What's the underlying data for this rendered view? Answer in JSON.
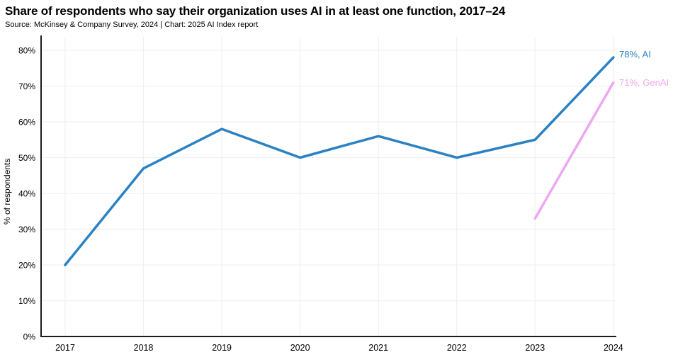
{
  "header": {
    "title": "Share of respondents who say their organization uses AI in at least one function, 2017–24",
    "source": "Source: McKinsey & Company Survey, 2024 | Chart: 2025 AI Index report"
  },
  "colors": {
    "ai_line": "#2B82C3",
    "genai_line": "#EDA8F2",
    "grid": "#F0F0F0",
    "axis": "#1C1C1C",
    "tick_text": "#000000"
  },
  "chart_data": {
    "type": "line",
    "title": "Share of respondents who say their organization uses AI in at least one function, 2017–24",
    "subtitle": "Source: McKinsey & Company Survey, 2024 | Chart: 2025 AI Index report",
    "xlabel": "",
    "ylabel": "% of respondents",
    "x": [
      2017,
      2018,
      2019,
      2020,
      2021,
      2022,
      2023,
      2024
    ],
    "xtick_labels": [
      "2017",
      "2018",
      "2019",
      "2020",
      "2021",
      "2022",
      "2023",
      "2024"
    ],
    "ylim": [
      0,
      80
    ],
    "ytick_values": [
      0,
      10,
      20,
      30,
      40,
      50,
      60,
      70,
      80
    ],
    "ytick_labels": [
      "0%",
      "10%",
      "20%",
      "30%",
      "40%",
      "50%",
      "60%",
      "70%",
      "80%"
    ],
    "grid": true,
    "legend_position": "end-of-line-labels",
    "series": [
      {
        "name": "AI",
        "color_key": "ai_line",
        "x": [
          2017,
          2018,
          2019,
          2020,
          2021,
          2022,
          2023,
          2024
        ],
        "values": [
          20,
          47,
          58,
          50,
          56,
          50,
          55,
          78
        ],
        "end_label": "78%, AI"
      },
      {
        "name": "GenAI",
        "color_key": "genai_line",
        "x": [
          2023,
          2024
        ],
        "values": [
          33,
          71
        ],
        "end_label": "71%, GenAI"
      }
    ]
  }
}
